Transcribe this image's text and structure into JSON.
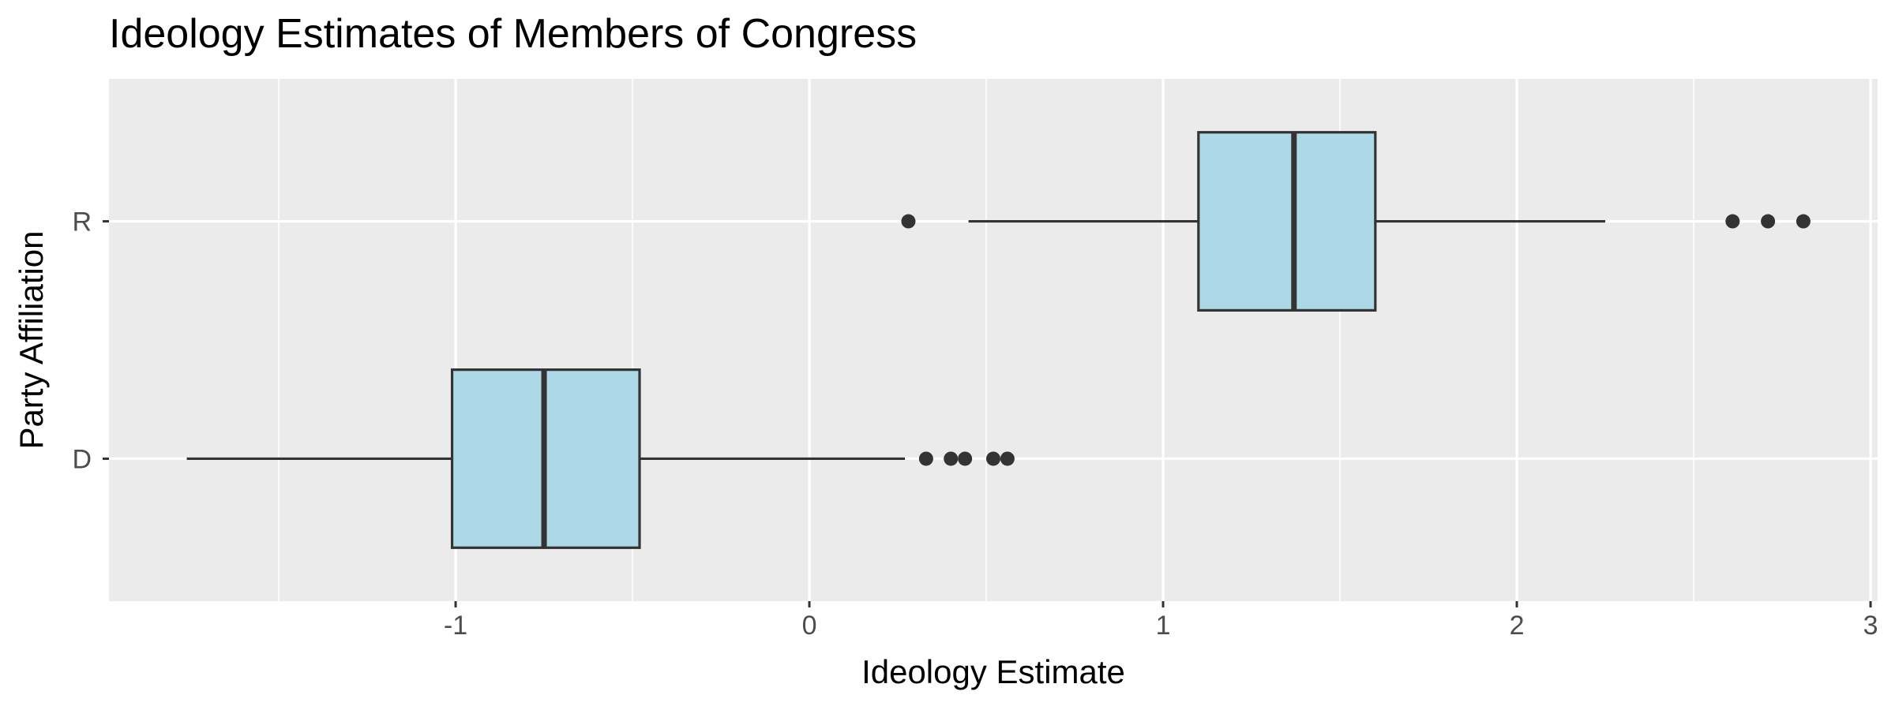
{
  "chart_data": {
    "type": "boxplot",
    "orientation": "horizontal",
    "title": "Ideology Estimates of Members of Congress",
    "xlabel": "Ideology Estimate",
    "ylabel": "Party Affiliation",
    "xlim": [
      -1.98,
      3.02
    ],
    "x_ticks": [
      -1,
      0,
      1,
      2,
      3
    ],
    "x_tick_labels": [
      "-1",
      "0",
      "1",
      "2",
      "3"
    ],
    "x_minor_ticks": [
      -1.5,
      -0.5,
      0.5,
      1.5,
      2.5
    ],
    "categories": [
      "R",
      "D"
    ],
    "grid": true,
    "background_color": "#ebebeb",
    "box_fill": "#add8e6",
    "box_stroke": "#333333",
    "boxes": [
      {
        "category": "R",
        "whisker_low": 0.45,
        "q1": 1.1,
        "median": 1.37,
        "q3": 1.6,
        "whisker_high": 2.25,
        "outliers": [
          0.28,
          2.61,
          2.71,
          2.81
        ]
      },
      {
        "category": "D",
        "whisker_low": -1.76,
        "q1": -1.01,
        "median": -0.75,
        "q3": -0.48,
        "whisker_high": 0.27,
        "outliers": [
          0.33,
          0.4,
          0.44,
          0.52,
          0.56
        ]
      }
    ]
  }
}
